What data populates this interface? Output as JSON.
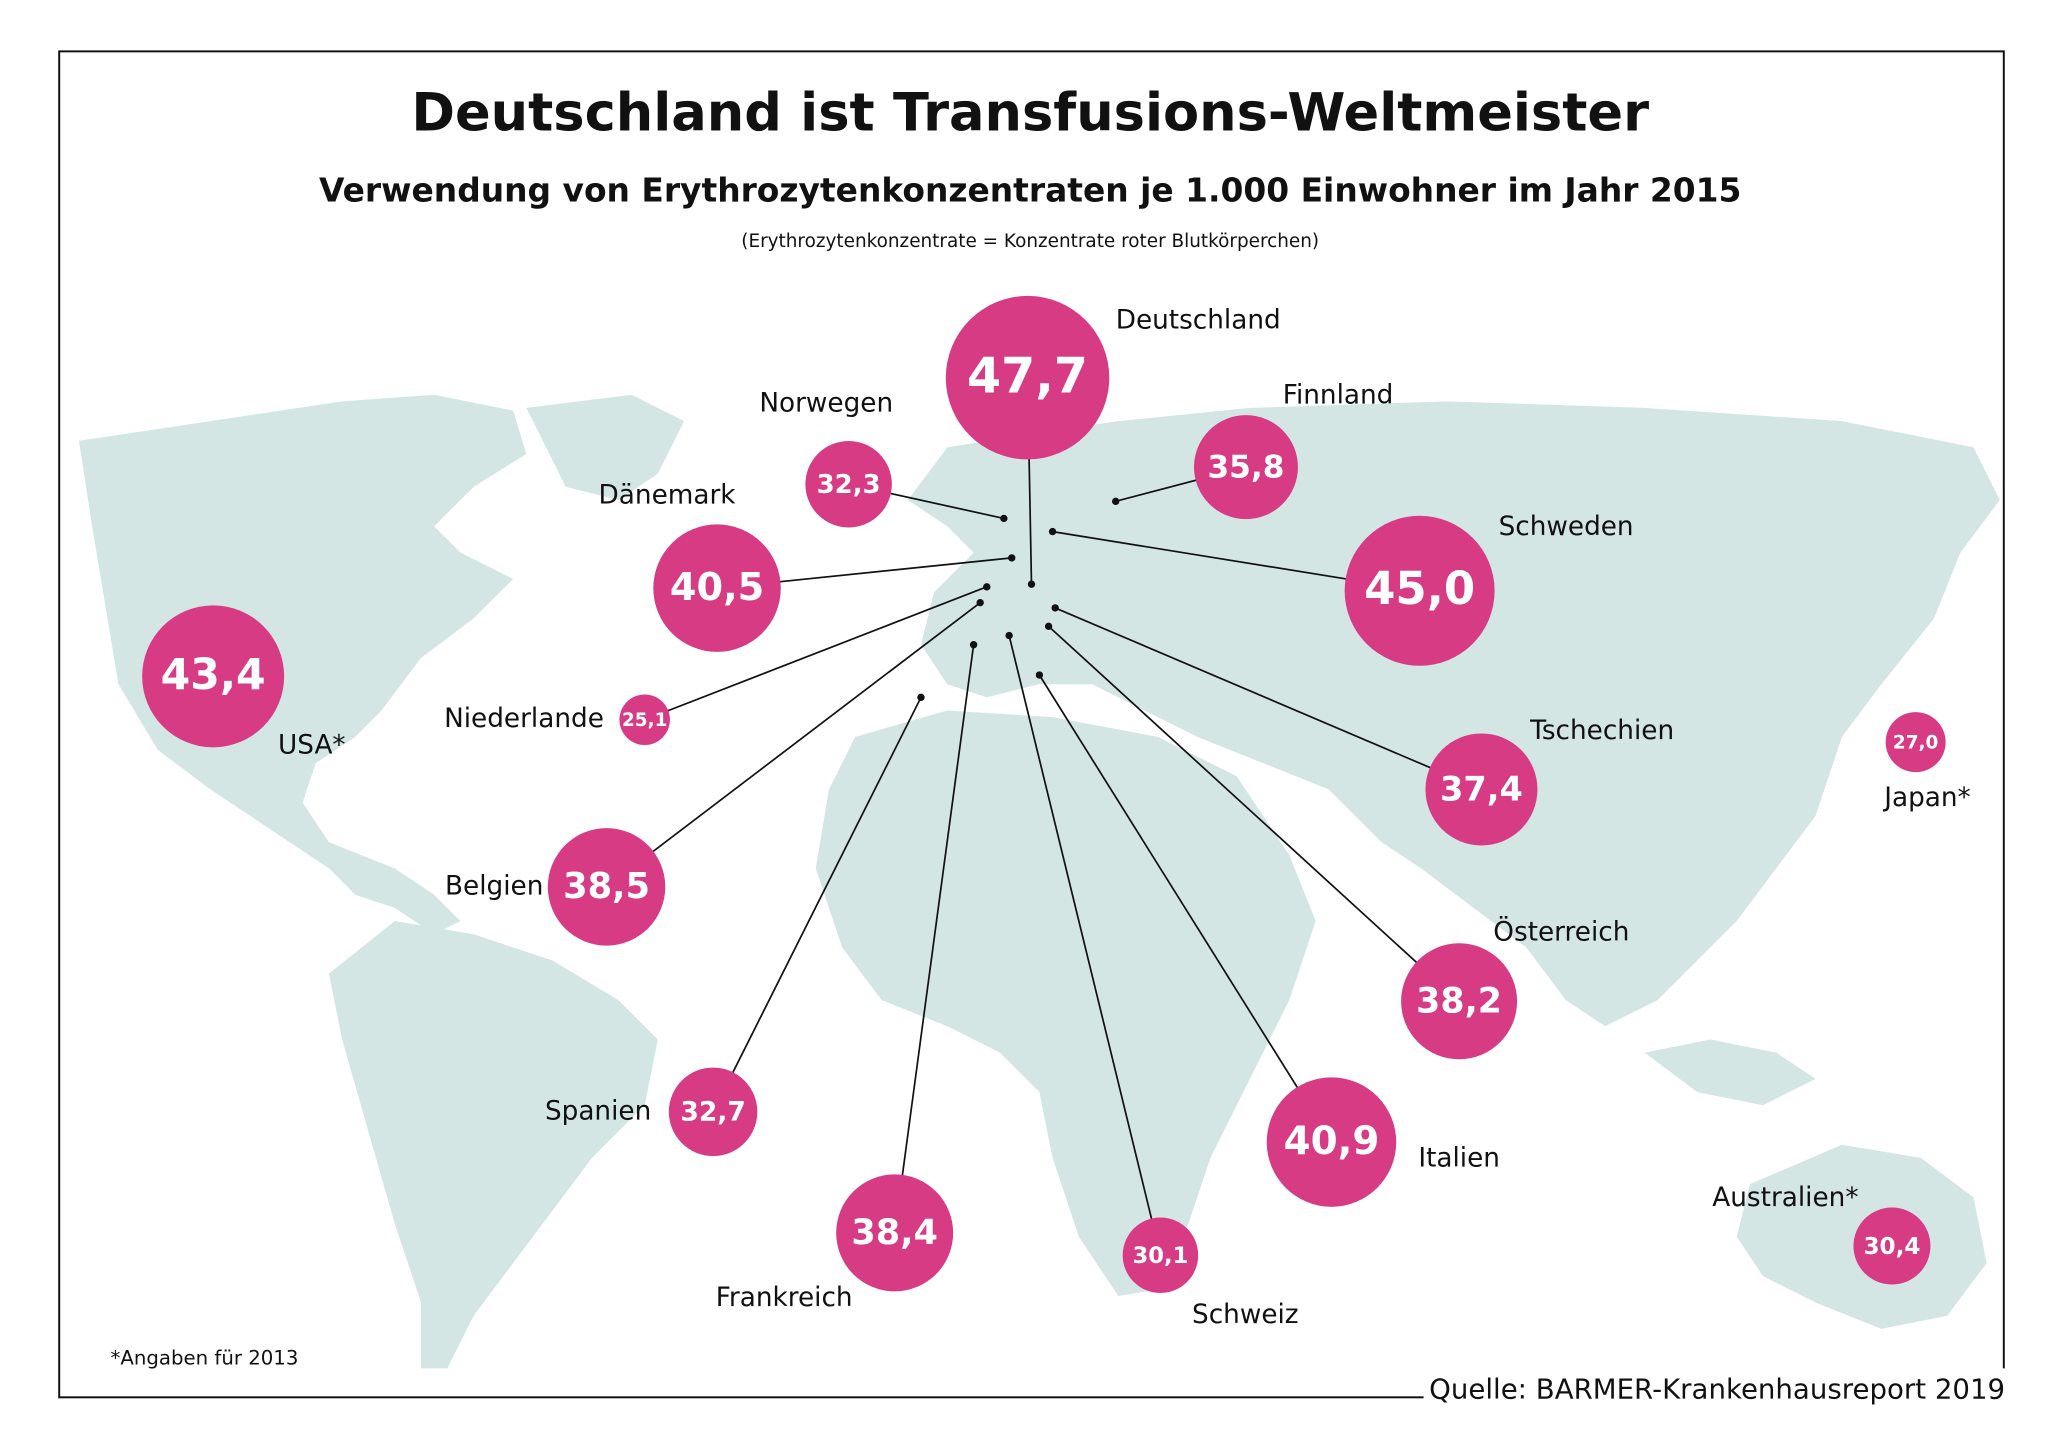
{
  "chart_data": {
    "type": "bubble",
    "title": "Deutschland ist Transfusions-Weltmeister",
    "subtitle": "Verwendung von Erythrozytenkonzentraten je 1.000 Einwohner im Jahr 2015",
    "note": "(Erythrozytenkonzentrate = Konzentrate roter Blutkörperchen)",
    "footnote": "*Angaben für 2013",
    "source": "Quelle: BARMER-Krankenhausreport 2019",
    "color": "#d63b84",
    "categories": [
      "Deutschland",
      "Norwegen",
      "Finnland",
      "Dänemark",
      "Schweden",
      "USA*",
      "Niederlande",
      "Tschechien",
      "Japan*",
      "Belgien",
      "Österreich",
      "Spanien",
      "Italien",
      "Frankreich",
      "Schweiz",
      "Australien*"
    ],
    "values": [
      47.7,
      32.3,
      35.8,
      40.5,
      45.0,
      43.4,
      25.1,
      37.4,
      27.0,
      38.5,
      38.2,
      32.7,
      40.9,
      38.4,
      30.1,
      30.4
    ],
    "value_labels": [
      "47,7",
      "32,3",
      "35,8",
      "40,5",
      "45,0",
      "43,4",
      "25,1",
      "37,4",
      "27,0",
      "38,5",
      "38,2",
      "32,7",
      "40,9",
      "38,4",
      "30,1",
      "30,4"
    ]
  }
}
